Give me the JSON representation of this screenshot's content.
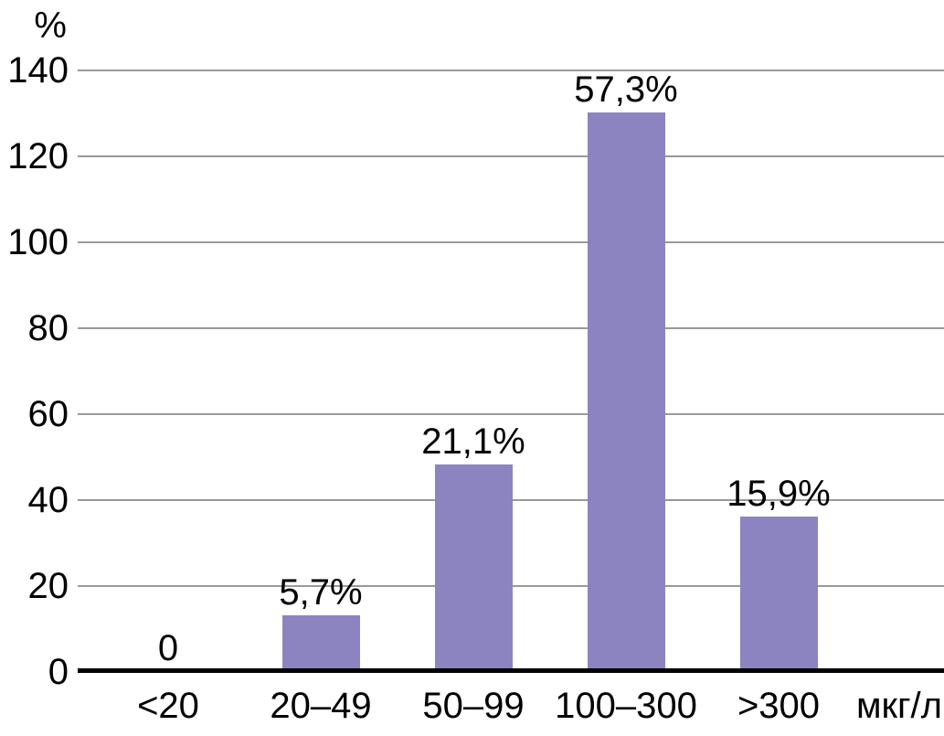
{
  "chart_data": {
    "type": "bar",
    "title": "",
    "ylabel": "%",
    "x_unit_label": "мкг/л",
    "categories": [
      "<20",
      "20–49",
      "50–99",
      "100–300",
      ">300"
    ],
    "values": [
      0,
      13,
      48,
      130,
      36
    ],
    "bar_labels": [
      "0",
      "5,7%",
      "21,1%",
      "57,3%",
      "15,9%"
    ],
    "yticks": [
      0,
      20,
      40,
      60,
      80,
      100,
      120,
      140
    ],
    "ylim": [
      0,
      140
    ],
    "grid": "horizontal-only",
    "legend": "none",
    "bar_color": "#8c84c0",
    "axis_color": "#000000",
    "gridline_color": "#999999",
    "text_color": "#000000"
  }
}
